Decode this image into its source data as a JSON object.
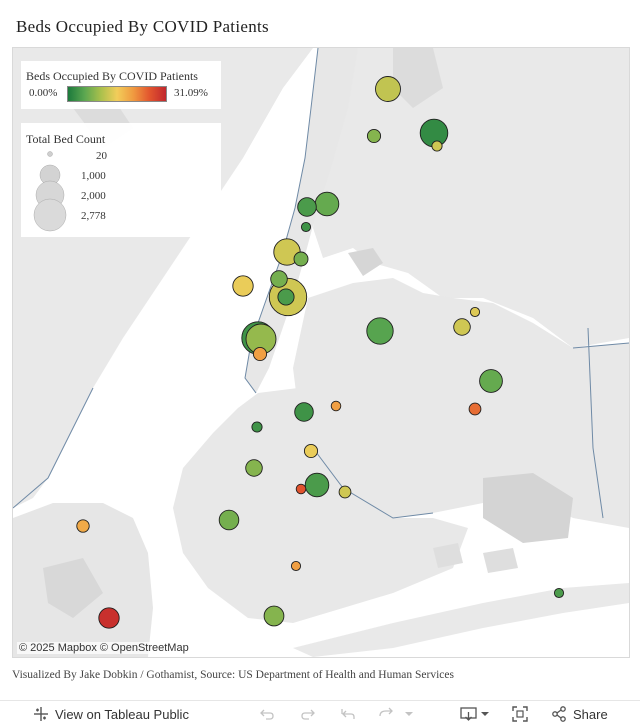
{
  "title": "Beds Occupied By COVID Patients",
  "color_legend": {
    "title": "Beds Occupied By COVID Patients",
    "min": "0.00%",
    "max": "31.09%"
  },
  "size_legend": {
    "title": "Total Bed Count",
    "values": [
      "20",
      "1,000",
      "2,000",
      "2,778"
    ]
  },
  "attribution": "© 2025 Mapbox  © OpenStreetMap",
  "source": "Visualized By Jake Dobkin / Gothamist, Source: US Department of Health and Human Services",
  "toolbar": {
    "view_label": "View on Tableau Public",
    "share_label": "Share"
  },
  "colors": {
    "water": "#ffffff",
    "land": "#e8e8e8",
    "park": "#dadada",
    "border": "#6f8aa6"
  },
  "chart_data": {
    "type": "scatter",
    "encoding": {
      "color": "Beds Occupied By COVID Patients (%)",
      "size": "Total Bed Count"
    },
    "color_range": [
      0.0,
      31.09
    ],
    "size_range": [
      20,
      2778
    ],
    "hospitals": [
      {
        "pct": 12,
        "beds": 900
      },
      {
        "pct": 8,
        "beds": 250
      },
      {
        "pct": 2,
        "beds": 1100
      },
      {
        "pct": 13,
        "beds": 150
      },
      {
        "pct": 6,
        "beds": 800
      },
      {
        "pct": 4,
        "beds": 500
      },
      {
        "pct": 3,
        "beds": 120
      },
      {
        "pct": 13,
        "beds": 1000
      },
      {
        "pct": 7,
        "beds": 280
      },
      {
        "pct": 7,
        "beds": 400
      },
      {
        "pct": 15,
        "beds": 600
      },
      {
        "pct": 13,
        "beds": 2000
      },
      {
        "pct": 4,
        "beds": 380
      },
      {
        "pct": 9,
        "beds": 1300
      },
      {
        "pct": 20,
        "beds": 250
      },
      {
        "pct": 3,
        "beds": 1500
      },
      {
        "pct": 5,
        "beds": 1000
      },
      {
        "pct": 13,
        "beds": 400
      },
      {
        "pct": 14,
        "beds": 120
      },
      {
        "pct": 6,
        "beds": 750
      },
      {
        "pct": 24,
        "beds": 200
      },
      {
        "pct": 3,
        "beds": 500
      },
      {
        "pct": 20,
        "beds": 130
      },
      {
        "pct": 3,
        "beds": 150
      },
      {
        "pct": 15,
        "beds": 250
      },
      {
        "pct": 8,
        "beds": 400
      },
      {
        "pct": 4,
        "beds": 800
      },
      {
        "pct": 26,
        "beds": 130
      },
      {
        "pct": 13,
        "beds": 200
      },
      {
        "pct": 7,
        "beds": 550
      },
      {
        "pct": 19,
        "beds": 220
      },
      {
        "pct": 20,
        "beds": 120
      },
      {
        "pct": 8,
        "beds": 560
      },
      {
        "pct": 30,
        "beds": 600
      },
      {
        "pct": 4,
        "beds": 120
      }
    ]
  }
}
